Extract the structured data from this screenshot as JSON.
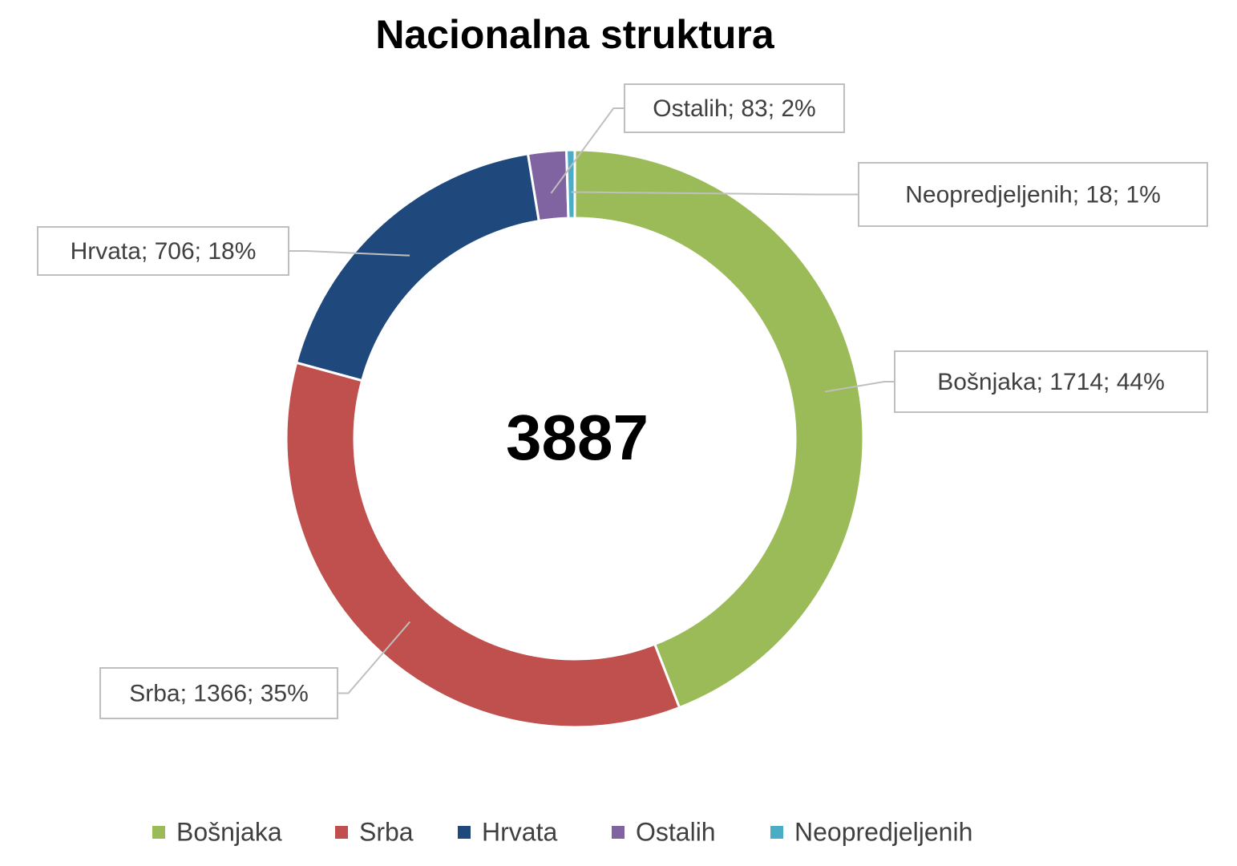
{
  "chart_data": {
    "type": "donut",
    "title": "Nacionalna struktura",
    "center_label": 3887,
    "categories": [
      "Bošnjaka",
      "Srba",
      "Hrvata",
      "Ostalih",
      "Neopredjeljenih"
    ],
    "values": [
      1714,
      1366,
      706,
      83,
      18
    ],
    "value_labels": [
      "Bošnjaka; 1714; 44%",
      "Srba; 1366; 35%",
      "Hrvata; 706; 18%",
      "Ostalih; 83; 2%",
      "Neopredjeljenih; 18; 1%"
    ],
    "colors": [
      "#9bbb59",
      "#c0504d",
      "#1f497d",
      "#8064a2",
      "#4bacc6"
    ],
    "legend": "bottom"
  }
}
